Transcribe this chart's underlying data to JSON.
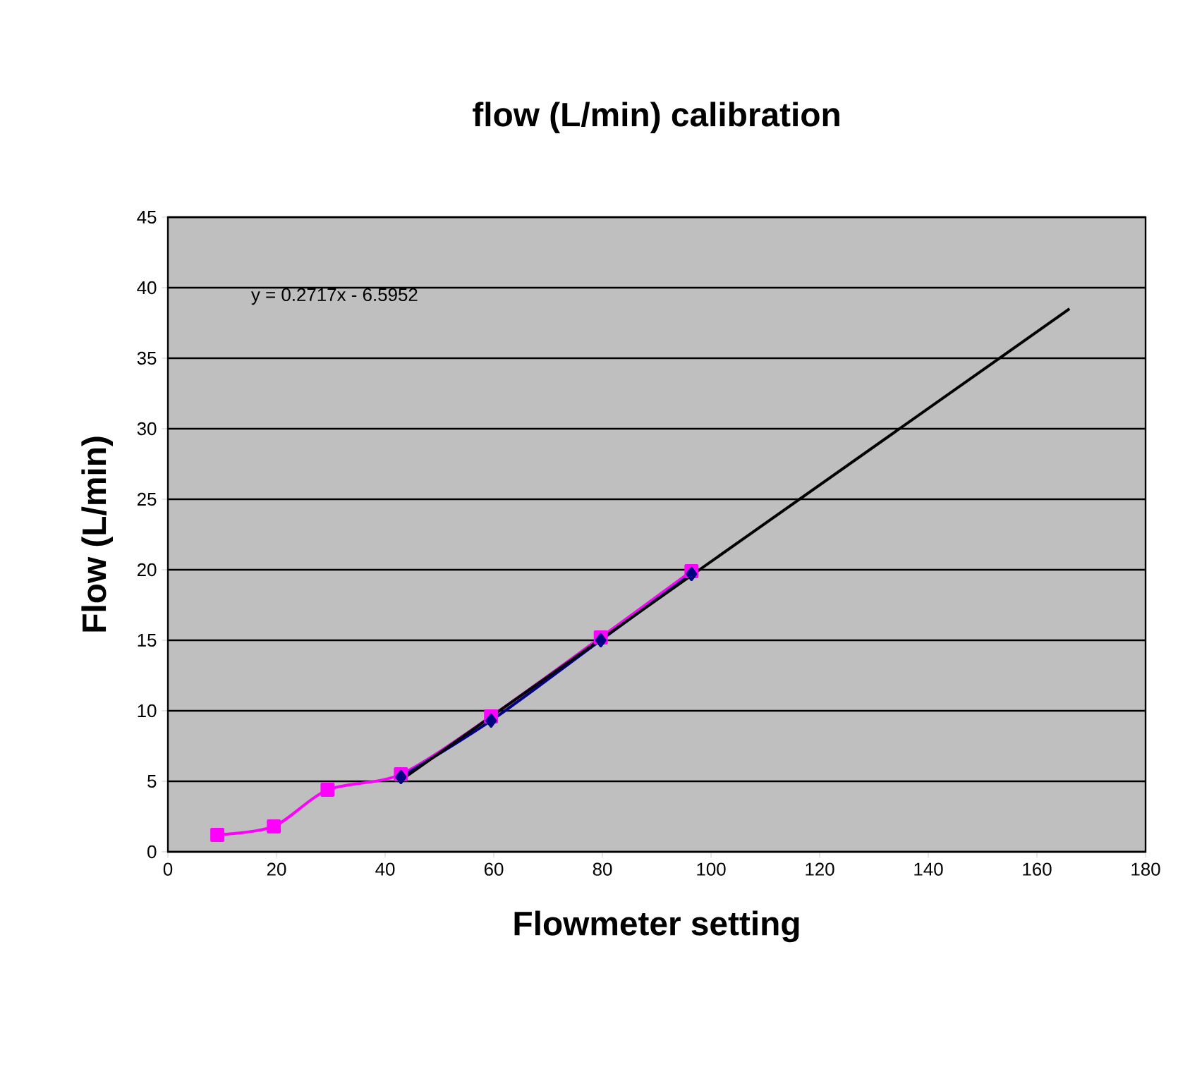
{
  "chart_data": {
    "type": "line",
    "title": "flow (L/min) calibration",
    "xlabel": "Flowmeter setting",
    "ylabel": "Flow (L/min)",
    "xlim": [
      0,
      180
    ],
    "xticks": [
      0,
      20,
      40,
      60,
      80,
      100,
      120,
      140,
      160,
      180
    ],
    "ylim": [
      0,
      45
    ],
    "yticks": [
      0,
      5,
      10,
      15,
      20,
      25,
      30,
      35,
      40,
      45
    ],
    "grid": "y",
    "annotations": [
      "y = 0.2717x - 6.5952"
    ],
    "series": [
      {
        "color": "#ff00ff",
        "marker": "square",
        "x": [
          9.1,
          19.5,
          29.4,
          42.9,
          59.5,
          79.7,
          96.4
        ],
        "values": [
          1.2,
          1.8,
          4.4,
          5.5,
          9.6,
          15.2,
          19.9
        ]
      },
      {
        "color": "#000080",
        "marker": "diamond",
        "x": [
          42.9,
          59.5,
          79.7,
          96.4
        ],
        "values": [
          5.3,
          9.3,
          15.0,
          19.7
        ]
      },
      {
        "color": "#000000",
        "marker": "none",
        "x": [
          43,
          166
        ],
        "values": [
          5.1,
          38.5
        ]
      }
    ]
  }
}
